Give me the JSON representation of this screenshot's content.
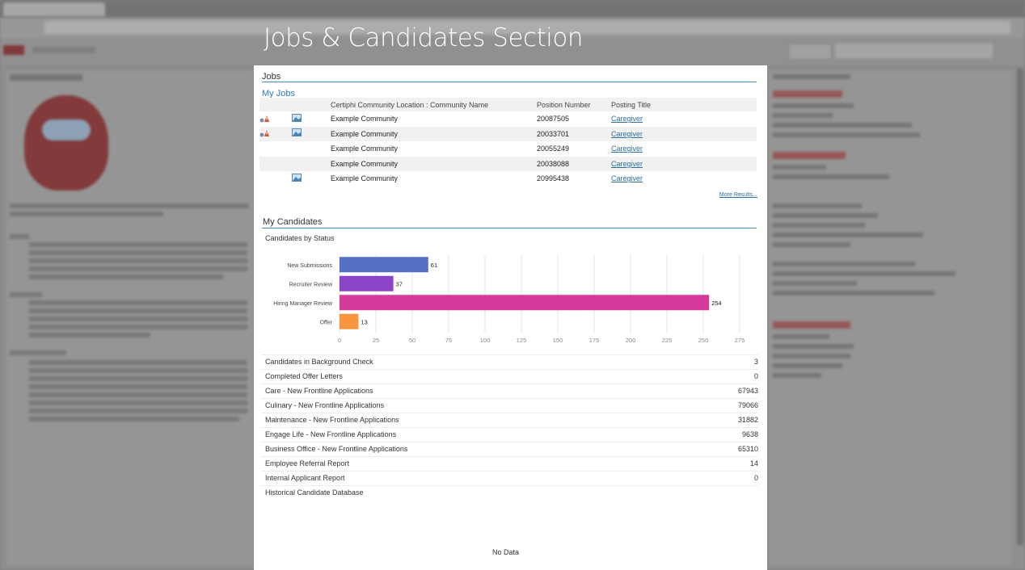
{
  "section_title": "Jobs & Candidates Section",
  "jobs": {
    "header": "Jobs",
    "my_jobs_label": "My Jobs",
    "columns": [
      "Certiphi Community Location : Community Name",
      "Position Number",
      "Posting Title"
    ],
    "rows": [
      {
        "community": "Example Community",
        "position": "20087505",
        "title": "Caregiver"
      },
      {
        "community": "Example Community",
        "position": "20033701",
        "title": "Caregiver"
      },
      {
        "community": "Example Community",
        "position": "20055249",
        "title": "Caregiver"
      },
      {
        "community": "Example Community",
        "position": "20038088",
        "title": "Caregiver"
      },
      {
        "community": "Example Community",
        "position": "20995438",
        "title": "Caregiver"
      }
    ],
    "more_results": "More Results..."
  },
  "candidates": {
    "header": "My Candidates",
    "chart_title": "Candidates by Status",
    "stats": [
      {
        "label": "Candidates in Background Check",
        "value": "3"
      },
      {
        "label": "Completed Offer Letters",
        "value": "0"
      },
      {
        "label": "Care - New Frontline Applications",
        "value": "67943"
      },
      {
        "label": "Culinary - New Frontline Applications",
        "value": "79066"
      },
      {
        "label": "Maintenance - New Frontline Applications",
        "value": "31882"
      },
      {
        "label": "Engage Life - New Frontline Applications",
        "value": "9638"
      },
      {
        "label": "Business Office - New Frontline Applications",
        "value": "65310"
      },
      {
        "label": "Employee Referral Report",
        "value": "14"
      },
      {
        "label": "Internal Applicant Report",
        "value": "0"
      },
      {
        "label": "Historical Candidate Database",
        "value": ""
      }
    ],
    "no_data": "No Data"
  },
  "chart_data": {
    "type": "bar",
    "orientation": "horizontal",
    "title": "Candidates by Status",
    "categories": [
      "New Submissions",
      "Recruiter Review",
      "Hiring Manager Review",
      "Offer"
    ],
    "values": [
      61,
      37,
      254,
      13
    ],
    "colors": [
      "#5470c6",
      "#8a43c9",
      "#d63b9c",
      "#f7963f"
    ],
    "xlim": [
      0,
      275
    ],
    "xticks": [
      0,
      25,
      50,
      75,
      100,
      125,
      150,
      175,
      200,
      225,
      250,
      275
    ],
    "grid": true
  }
}
